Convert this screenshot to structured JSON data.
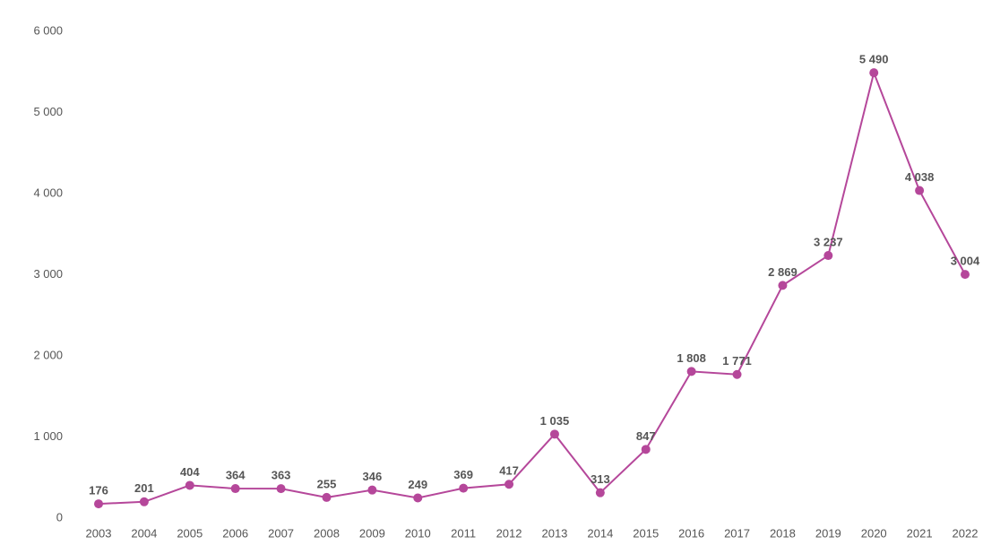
{
  "chart_data": {
    "type": "line",
    "categories": [
      "2003",
      "2004",
      "2005",
      "2006",
      "2007",
      "2008",
      "2009",
      "2010",
      "2011",
      "2012",
      "2013",
      "2014",
      "2015",
      "2016",
      "2017",
      "2018",
      "2019",
      "2020",
      "2021",
      "2022"
    ],
    "series": [
      {
        "color": "#b5479a",
        "values": [
          176,
          201,
          404,
          364,
          363,
          255,
          346,
          249,
          369,
          417,
          1035,
          313,
          847,
          1808,
          1771,
          2869,
          3237,
          5490,
          4038,
          3004
        ],
        "value_labels": [
          "176",
          "201",
          "404",
          "364",
          "363",
          "255",
          "346",
          "249",
          "369",
          "417",
          "1 035",
          "313",
          "847",
          "1 808",
          "1 771",
          "2 869",
          "3 237",
          "5 490",
          "4 038",
          "3 004"
        ]
      }
    ],
    "ylim": [
      0,
      6000
    ],
    "yticks": [
      {
        "value": 0,
        "label": "0"
      },
      {
        "value": 1000,
        "label": "1 000"
      },
      {
        "value": 2000,
        "label": "2 000"
      },
      {
        "value": 3000,
        "label": "3 000"
      },
      {
        "value": 4000,
        "label": "4 000"
      },
      {
        "value": 5000,
        "label": "5 000"
      },
      {
        "value": 6000,
        "label": "6 000"
      }
    ],
    "grid": false
  }
}
